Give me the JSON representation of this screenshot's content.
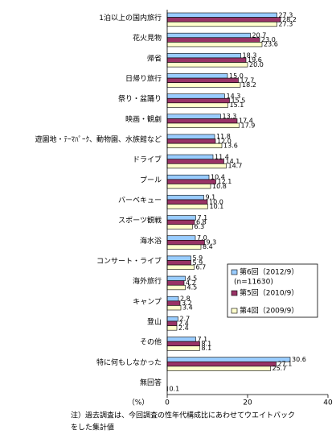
{
  "chart_data": {
    "type": "hbar",
    "categories": [
      "1泊以上の国内旅行",
      "花火見物",
      "帰省",
      "日帰り旅行",
      "祭り・盆踊り",
      "映画・観劇",
      "遊園地・ﾃｰﾏﾊﾟｰｸ、動物園、水族館など",
      "ドライブ",
      "プール",
      "バーベキュー",
      "スポーツ観戦",
      "海水浴",
      "コンサート・ライブ",
      "海外旅行",
      "キャンプ",
      "登山",
      "その他",
      "特に何もしなかった",
      "無回答"
    ],
    "series": [
      {
        "name": "第6回（2012/9）",
        "color": "#99ccff",
        "values": [
          27.3,
          20.7,
          18.3,
          15.0,
          14.3,
          13.3,
          11.8,
          11.4,
          10.4,
          9.1,
          7.1,
          7.0,
          5.9,
          4.5,
          2.8,
          2.7,
          7.1,
          30.6,
          null
        ],
        "value_labels": [
          "27.3",
          "20.7",
          "18.3",
          "15.0",
          "14.3",
          "13.3",
          "11.8",
          "11.4",
          "10.4",
          "9.1",
          "7.1",
          "7.0",
          "5.9",
          "4.5",
          "2.8",
          "2.7",
          "7.1",
          "30.6",
          null
        ]
      },
      {
        "name": "第5回（2010/9）",
        "color": "#993366",
        "values": [
          28.2,
          23.0,
          19.6,
          17.7,
          15.5,
          17.4,
          12.0,
          14.1,
          12.1,
          10.0,
          6.8,
          9.3,
          5.9,
          4.2,
          3.2,
          2.4,
          8.1,
          27.1,
          null
        ],
        "value_labels": [
          "28.2",
          "23.0",
          "19.6",
          "17.7",
          "15.5",
          "17.4",
          "12.0",
          "14.1",
          "12.1",
          "10.0",
          "6.8",
          "9.3",
          "5.9",
          "4.2",
          "3.2",
          "2.4",
          "8.1",
          "27.1",
          null
        ]
      },
      {
        "name": "第4回（2009/9）",
        "color": "#ffffcc",
        "values": [
          27.3,
          23.6,
          20.0,
          18.2,
          15.1,
          17.9,
          13.6,
          14.7,
          10.8,
          10.1,
          6.3,
          8.4,
          6.7,
          4.5,
          3.4,
          2.4,
          8.1,
          25.7,
          0.1
        ],
        "value_labels": [
          "27.3",
          "23.6",
          "20.0",
          "18.2",
          "15.1",
          "17.9",
          "13.6",
          "14.7",
          "10.8",
          "10.1",
          "6.3",
          "8.4",
          "6.7",
          "4.5",
          "3.4",
          "2.4",
          "8.1",
          "25.7",
          "0.1"
        ]
      }
    ],
    "legend_note": "(n=11630)",
    "xlim": [
      0,
      40
    ],
    "xticks": [
      0,
      20,
      40
    ],
    "x_axis_label": "（%）",
    "footnote": [
      "注）過去調査は、今回調査の性年代構成比にあわせてウエイトバック",
      "をした集計値"
    ]
  }
}
